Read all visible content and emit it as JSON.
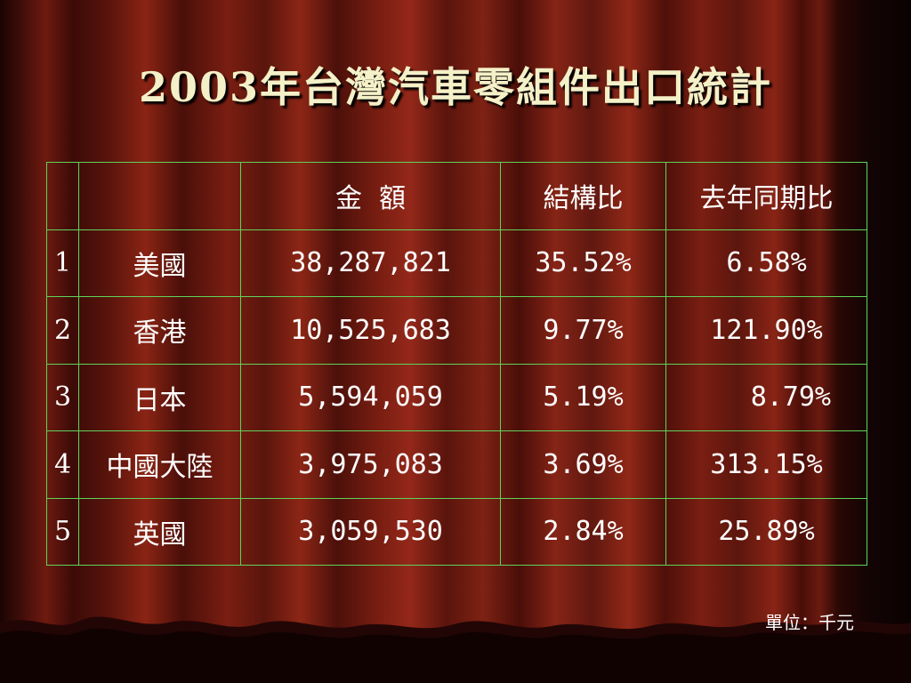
{
  "slide": {
    "title": "2003年台灣汽車零組件出口統計",
    "unit_note": "單位：千元"
  },
  "table": {
    "headers": [
      "",
      "",
      "金  額",
      "結構比",
      "去年同期比"
    ],
    "rows": [
      {
        "rank": "1",
        "country": "美國",
        "amount": "38,287,821",
        "share": "35.52%",
        "yoy": "6.58%"
      },
      {
        "rank": "2",
        "country": "香港",
        "amount": "10,525,683",
        "share": "9.77%",
        "yoy": "121.90%"
      },
      {
        "rank": "3",
        "country": "日本",
        "amount": "5,594,059",
        "share": "5.19%",
        "yoy": "8.79%"
      },
      {
        "rank": "4",
        "country": "中國大陸",
        "amount": "3,975,083",
        "share": "3.69%",
        "yoy": "313.15%"
      },
      {
        "rank": "5",
        "country": "英國",
        "amount": "3,059,530",
        "share": "2.84%",
        "yoy": "25.89%"
      }
    ]
  },
  "colors": {
    "title": "#f4f0c8",
    "grid": "#5fd35a",
    "text": "#ffffff",
    "curtain": "#7a1e12"
  }
}
